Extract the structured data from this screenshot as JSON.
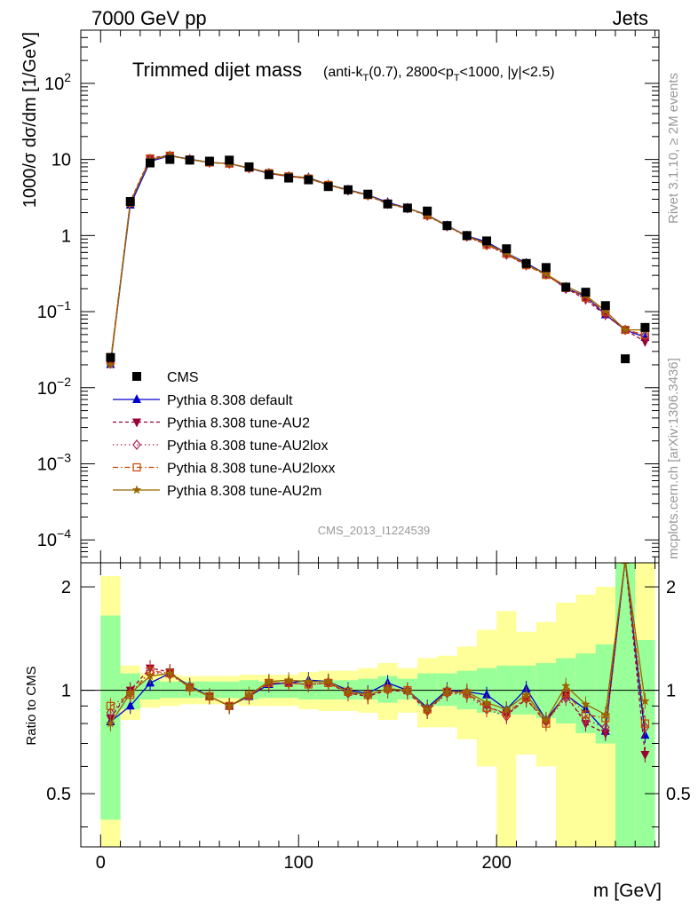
{
  "header": {
    "left": "7000 GeV pp",
    "right": "Jets"
  },
  "side_labels": {
    "rivet": "Rivet 3.1.10, ≥ 2M events",
    "mcplots": "mcplots.cern.ch [arXiv:1306.3436]"
  },
  "chart_data": {
    "type": "line",
    "title_main": "Trimmed dijet mass",
    "title_sub": "(anti-kT(0.7), 2800<pT<1000, |y|<2.5)",
    "watermark": "CMS_2013_I1224539",
    "xlabel": "m [GeV]",
    "ylabel": "1000/σ dσ/dm [1/GeV]",
    "ratio_ylabel": "Ratio to CMS",
    "xlim": [
      -10,
      282
    ],
    "ylim": [
      5e-05,
      500
    ],
    "yscale": "log",
    "ratio_ylim": [
      0.35,
      2.35
    ],
    "x_ticks": [
      0,
      100,
      200
    ],
    "y_ticks": [
      "10^-4",
      "10^-3",
      "10^-2",
      "10^-1",
      "1",
      "10",
      "10^2"
    ],
    "ratio_ticks": [
      "0.5",
      "1",
      "2"
    ],
    "legend_position": "bottom-left",
    "colors": {
      "data": "#000000",
      "band_inner": "#99ff99",
      "band_outer": "#ffff99",
      "default": "#0000cc",
      "au2": "#990033",
      "au2lox": "#aa2255",
      "au2loxx": "#cc4400",
      "au2m": "#996600"
    },
    "bins": [
      [
        0,
        10
      ],
      [
        10,
        20
      ],
      [
        20,
        30
      ],
      [
        30,
        40
      ],
      [
        40,
        50
      ],
      [
        50,
        60
      ],
      [
        60,
        70
      ],
      [
        70,
        80
      ],
      [
        80,
        90
      ],
      [
        90,
        100
      ],
      [
        100,
        110
      ],
      [
        110,
        120
      ],
      [
        120,
        130
      ],
      [
        130,
        140
      ],
      [
        140,
        150
      ],
      [
        150,
        160
      ],
      [
        160,
        170
      ],
      [
        170,
        180
      ],
      [
        180,
        190
      ],
      [
        190,
        200
      ],
      [
        200,
        210
      ],
      [
        210,
        220
      ],
      [
        220,
        230
      ],
      [
        230,
        240
      ],
      [
        240,
        250
      ],
      [
        250,
        260
      ],
      [
        260,
        270
      ],
      [
        270,
        280
      ]
    ],
    "x": [
      5,
      15,
      25,
      35,
      45,
      55,
      65,
      75,
      85,
      95,
      105,
      115,
      125,
      135,
      145,
      155,
      165,
      175,
      185,
      195,
      205,
      215,
      225,
      235,
      245,
      255,
      265,
      275
    ],
    "data_values": [
      0.025,
      2.8,
      9.0,
      10.0,
      9.8,
      9.5,
      9.8,
      8.0,
      6.3,
      5.7,
      5.4,
      4.4,
      4.0,
      3.5,
      2.6,
      2.3,
      2.1,
      1.35,
      1.0,
      0.85,
      0.67,
      0.43,
      0.38,
      0.21,
      0.18,
      0.12,
      0.024,
      0.062
    ],
    "band_inner": [
      [
        0.42,
        1.65
      ],
      [
        0.88,
        1.12
      ],
      [
        0.94,
        1.07
      ],
      [
        0.95,
        1.06
      ],
      [
        0.95,
        1.06
      ],
      [
        0.95,
        1.06
      ],
      [
        0.95,
        1.06
      ],
      [
        0.94,
        1.07
      ],
      [
        0.95,
        1.06
      ],
      [
        0.95,
        1.06
      ],
      [
        0.94,
        1.07
      ],
      [
        0.94,
        1.07
      ],
      [
        0.94,
        1.07
      ],
      [
        0.94,
        1.08
      ],
      [
        0.92,
        1.1
      ],
      [
        0.94,
        1.08
      ],
      [
        0.9,
        1.12
      ],
      [
        0.9,
        1.12
      ],
      [
        0.88,
        1.14
      ],
      [
        0.86,
        1.16
      ],
      [
        0.85,
        1.18
      ],
      [
        0.85,
        1.18
      ],
      [
        0.83,
        1.2
      ],
      [
        0.8,
        1.24
      ],
      [
        0.75,
        1.28
      ],
      [
        0.7,
        1.36
      ],
      [
        0.35,
        2.35
      ],
      [
        0.35,
        1.4
      ]
    ],
    "band_outer": [
      [
        0.35,
        2.15
      ],
      [
        0.82,
        1.18
      ],
      [
        0.89,
        1.12
      ],
      [
        0.9,
        1.11
      ],
      [
        0.91,
        1.1
      ],
      [
        0.91,
        1.1
      ],
      [
        0.91,
        1.1
      ],
      [
        0.9,
        1.11
      ],
      [
        0.9,
        1.11
      ],
      [
        0.9,
        1.11
      ],
      [
        0.88,
        1.13
      ],
      [
        0.87,
        1.14
      ],
      [
        0.87,
        1.14
      ],
      [
        0.86,
        1.16
      ],
      [
        0.82,
        1.2
      ],
      [
        0.86,
        1.16
      ],
      [
        0.78,
        1.24
      ],
      [
        0.78,
        1.26
      ],
      [
        0.72,
        1.34
      ],
      [
        0.6,
        1.5
      ],
      [
        0.35,
        1.7
      ],
      [
        0.65,
        1.48
      ],
      [
        0.6,
        1.58
      ],
      [
        0.35,
        1.8
      ],
      [
        0.35,
        1.9
      ],
      [
        0.35,
        2.0
      ],
      [
        0.35,
        2.35
      ],
      [
        0.35,
        2.35
      ]
    ],
    "series": [
      {
        "name": "Pythia 8.308 default",
        "key": "default",
        "marker": "triangle",
        "dash": "",
        "ratio": [
          0.81,
          0.9,
          1.05,
          1.12,
          1.03,
          0.96,
          0.9,
          0.96,
          1.04,
          1.05,
          1.07,
          1.06,
          1.0,
          0.98,
          1.05,
          1.0,
          0.89,
          1.0,
          0.99,
          0.97,
          0.88,
          1.01,
          0.82,
          0.97,
          0.88,
          0.76,
          2.4,
          0.74
        ]
      },
      {
        "name": "Pythia 8.308 tune-AU2",
        "key": "au2",
        "marker": "triangle-down",
        "dash": "4,3",
        "ratio": [
          0.83,
          1.0,
          1.16,
          1.13,
          1.02,
          0.96,
          0.9,
          0.96,
          1.05,
          1.05,
          1.04,
          1.05,
          0.98,
          0.96,
          1.0,
          0.99,
          0.87,
          0.99,
          0.98,
          0.9,
          0.85,
          0.94,
          0.81,
          0.97,
          0.8,
          0.75,
          2.4,
          0.65
        ]
      },
      {
        "name": "Pythia 8.308 tune-AU2lox",
        "key": "au2lox",
        "marker": "diamond",
        "dash": "1.5,3",
        "ratio": [
          0.86,
          0.98,
          1.13,
          1.11,
          1.02,
          0.96,
          0.9,
          0.96,
          1.05,
          1.05,
          1.04,
          1.05,
          0.98,
          0.97,
          1.01,
          1.0,
          0.87,
          0.98,
          0.97,
          0.88,
          0.84,
          0.95,
          0.81,
          0.95,
          0.82,
          0.78,
          2.4,
          0.78
        ]
      },
      {
        "name": "Pythia 8.308 tune-AU2loxx",
        "key": "au2loxx",
        "marker": "square",
        "dash": "6,3,1.5,3",
        "ratio": [
          0.9,
          0.97,
          1.14,
          1.12,
          1.02,
          0.96,
          0.9,
          0.97,
          1.05,
          1.05,
          1.04,
          1.05,
          0.99,
          0.97,
          1.01,
          1.0,
          0.88,
          0.99,
          0.98,
          0.89,
          0.86,
          0.95,
          0.8,
          0.98,
          0.85,
          0.83,
          2.4,
          0.8
        ]
      },
      {
        "name": "Pythia 8.308 tune-AU2m",
        "key": "au2m",
        "marker": "star",
        "dash": "",
        "ratio": [
          0.8,
          0.98,
          1.1,
          1.12,
          1.02,
          0.96,
          0.9,
          0.97,
          1.06,
          1.07,
          1.06,
          1.06,
          0.99,
          0.97,
          1.01,
          1.0,
          0.88,
          0.99,
          0.99,
          0.92,
          0.88,
          0.97,
          0.82,
          1.03,
          0.91,
          0.85,
          2.4,
          0.93
        ]
      }
    ],
    "data_label": "CMS"
  }
}
